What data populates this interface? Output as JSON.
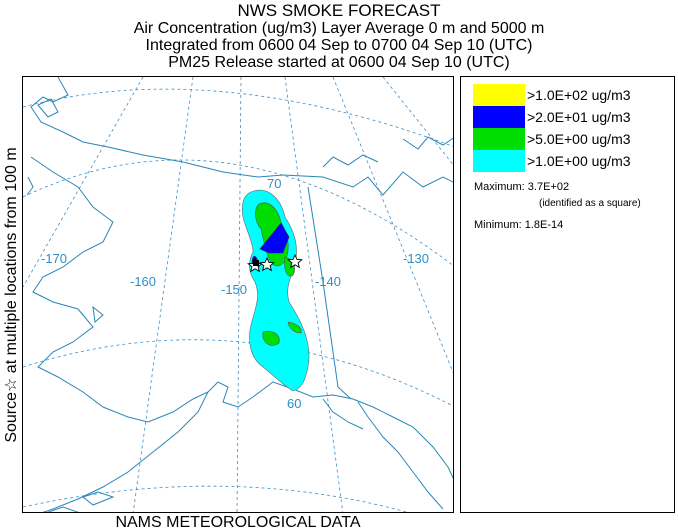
{
  "header": {
    "title": "NWS SMOKE FORECAST",
    "line2": "Air Concentration (ug/m3) Layer Average    0 m and  5000 m",
    "line3": "Integrated from 0600 04 Sep to 0700 04 Sep 10 (UTC)",
    "line4": "PM25 Release started at 0600 04 Sep 10 (UTC)"
  },
  "side_label": "Source☆    at multiple locations    from    100 m",
  "footer": "NAMS METEOROLOGICAL DATA",
  "map": {
    "graticule_labels": [
      "-170",
      "-160",
      "-150",
      "-140",
      "-130",
      "70",
      "60"
    ],
    "colors": {
      "coast": "#2a86b8",
      "graticule": "#3a90c8",
      "level1": "#00ffff",
      "level2": "#00dd00",
      "level3": "#0000ff",
      "level4": "#ffff00"
    }
  },
  "legend": {
    "items": [
      {
        "label": ">1.0E+02 ug/m3",
        "color": "#ffff00"
      },
      {
        "label": ">2.0E+01 ug/m3",
        "color": "#0000ff"
      },
      {
        "label": ">5.0E+00 ug/m3",
        "color": "#00dd00"
      },
      {
        "label": ">1.0E+00 ug/m3",
        "color": "#00ffff"
      }
    ],
    "maximum_label": "Maximum:",
    "maximum_value": "3.7E+02",
    "maximum_note": "(identified as a square)",
    "minimum_label": "Minimum:",
    "minimum_value": "1.8E-14"
  }
}
